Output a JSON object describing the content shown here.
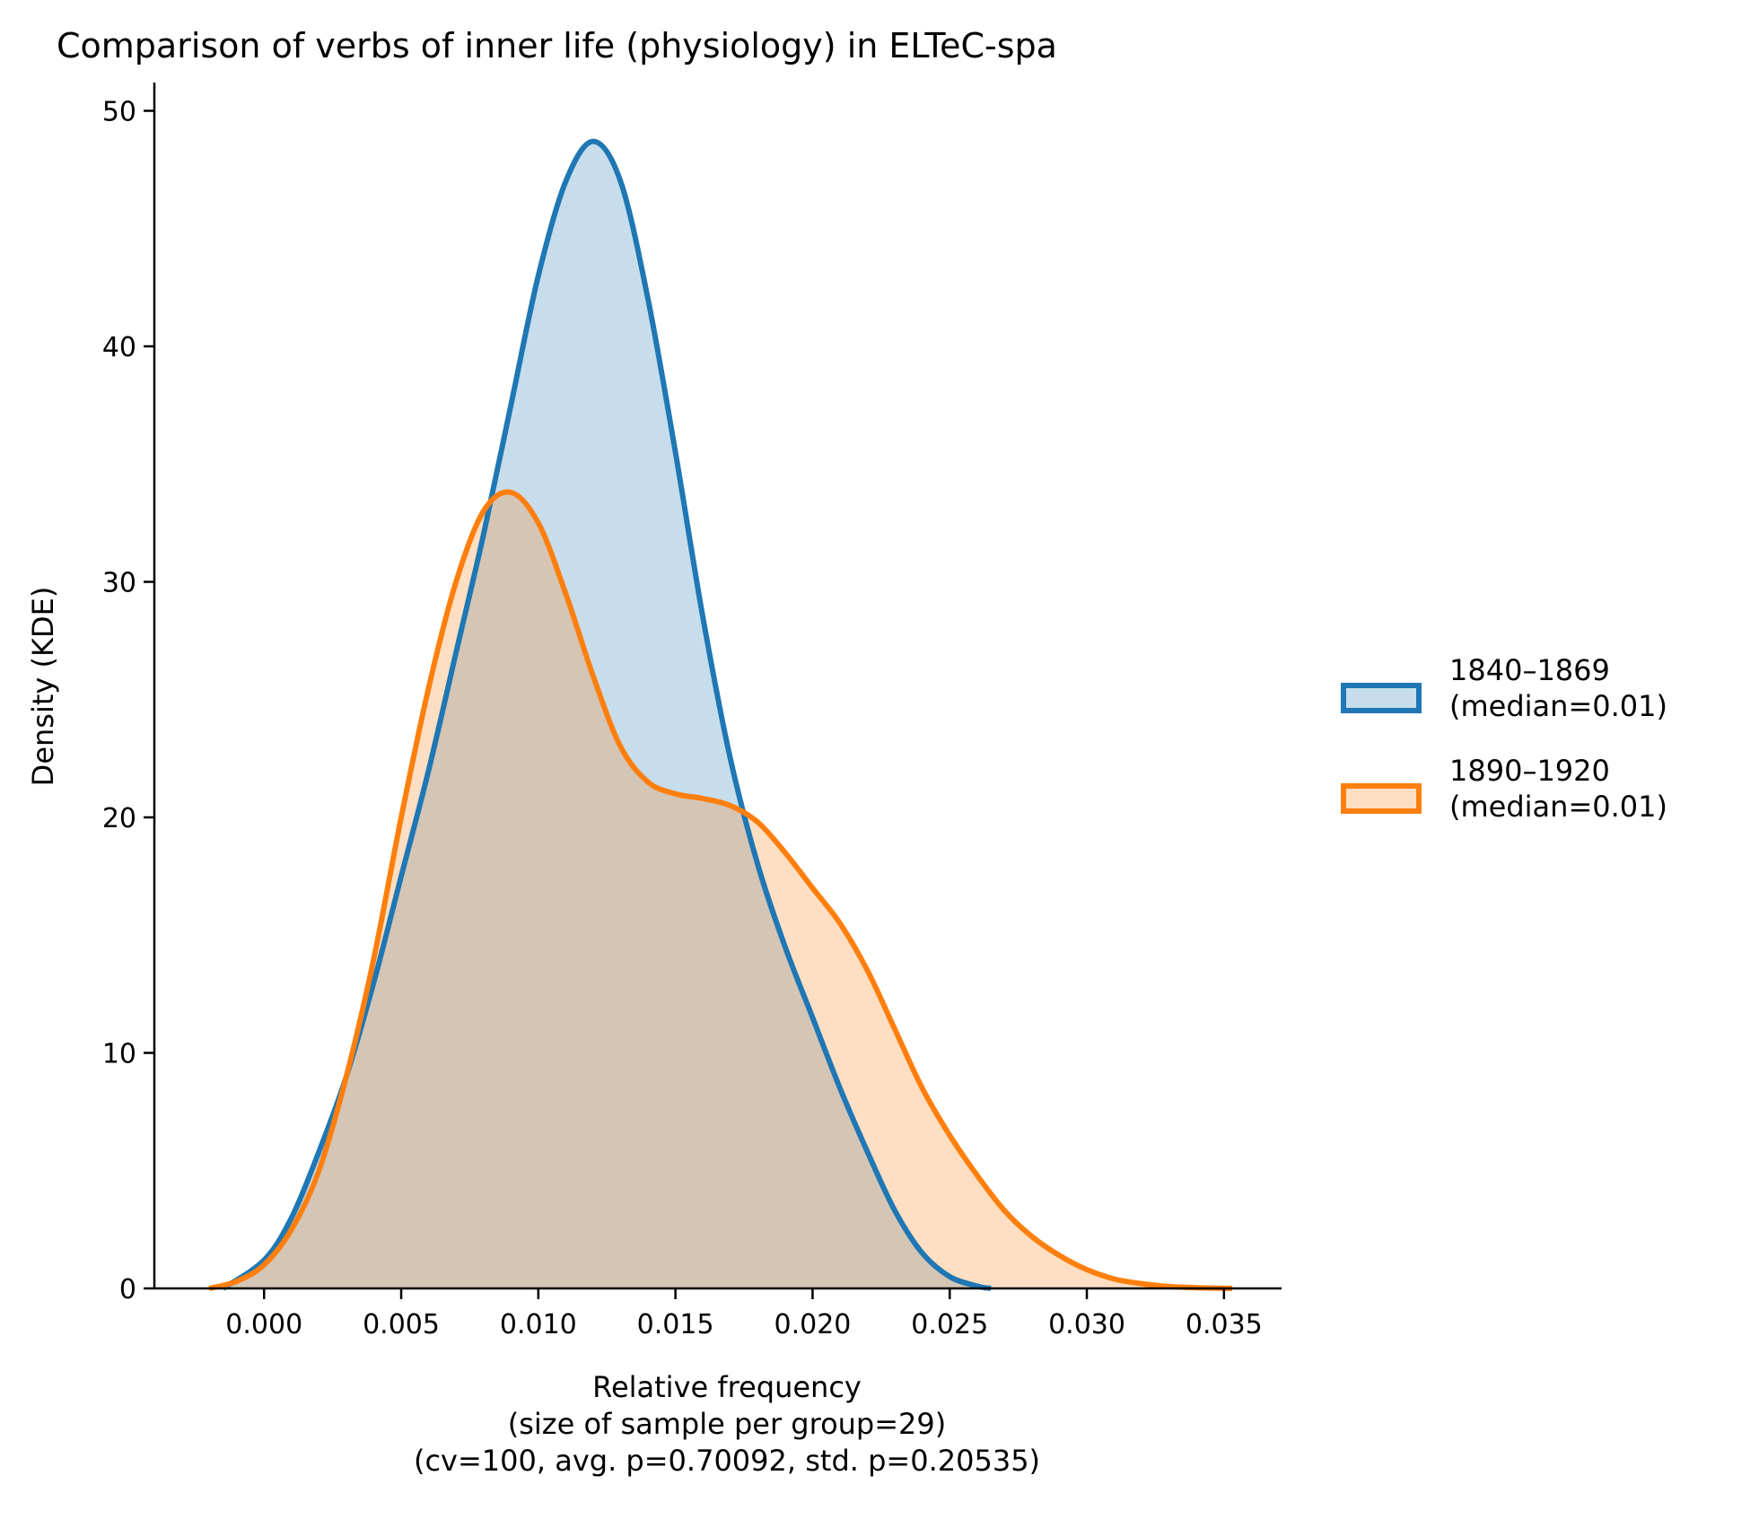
{
  "chart_data": {
    "type": "area",
    "title": "Comparison of verbs of inner life (physiology) in ELTeC-spa",
    "xlabel_lines": [
      "Relative frequency",
      "(size of sample per group=29)",
      "(cv=100, avg. p=0.70092, std. p=0.20535)"
    ],
    "ylabel": "Density (KDE)",
    "xlim": [
      -0.004,
      0.0371
    ],
    "ylim": [
      0,
      51.2
    ],
    "x_ticks": [
      0.0,
      0.005,
      0.01,
      0.015,
      0.02,
      0.025,
      0.03,
      0.035
    ],
    "x_tick_labels": [
      "0.000",
      "0.005",
      "0.010",
      "0.015",
      "0.020",
      "0.025",
      "0.030",
      "0.035"
    ],
    "y_ticks": [
      0,
      10,
      20,
      30,
      40,
      50
    ],
    "y_tick_labels": [
      "0",
      "10",
      "20",
      "30",
      "40",
      "50"
    ],
    "grid": false,
    "legend_position": "right",
    "series": [
      {
        "name": "1840–1869",
        "legend_lines": [
          "1840–1869",
          "(median=0.01)"
        ],
        "color": "#1f77b4",
        "fill": "#c6dbed",
        "points": [
          [
            -0.0015,
            0.0
          ],
          [
            0.0,
            1.2
          ],
          [
            0.001,
            3.0
          ],
          [
            0.002,
            5.8
          ],
          [
            0.003,
            9.0
          ],
          [
            0.004,
            13.0
          ],
          [
            0.005,
            17.5
          ],
          [
            0.006,
            22.0
          ],
          [
            0.007,
            27.0
          ],
          [
            0.008,
            32.0
          ],
          [
            0.009,
            37.5
          ],
          [
            0.01,
            43.0
          ],
          [
            0.011,
            47.0
          ],
          [
            0.012,
            48.7
          ],
          [
            0.013,
            47.0
          ],
          [
            0.014,
            42.0
          ],
          [
            0.015,
            35.5
          ],
          [
            0.016,
            28.5
          ],
          [
            0.017,
            22.5
          ],
          [
            0.018,
            18.0
          ],
          [
            0.019,
            14.5
          ],
          [
            0.02,
            11.5
          ],
          [
            0.021,
            8.5
          ],
          [
            0.022,
            5.8
          ],
          [
            0.023,
            3.3
          ],
          [
            0.024,
            1.5
          ],
          [
            0.025,
            0.5
          ],
          [
            0.026,
            0.1
          ],
          [
            0.0265,
            0.0
          ]
        ]
      },
      {
        "name": "1890–1920",
        "legend_lines": [
          "1890–1920",
          "(median=0.01)"
        ],
        "color": "#ff7f0e",
        "fill": "#fdd9b9",
        "points": [
          [
            -0.002,
            0.0
          ],
          [
            -0.001,
            0.3
          ],
          [
            0.0,
            1.0
          ],
          [
            0.001,
            2.5
          ],
          [
            0.002,
            5.0
          ],
          [
            0.003,
            9.0
          ],
          [
            0.004,
            14.0
          ],
          [
            0.005,
            20.0
          ],
          [
            0.006,
            25.5
          ],
          [
            0.007,
            30.0
          ],
          [
            0.008,
            33.0
          ],
          [
            0.009,
            33.8
          ],
          [
            0.01,
            32.5
          ],
          [
            0.011,
            29.5
          ],
          [
            0.012,
            26.0
          ],
          [
            0.013,
            23.0
          ],
          [
            0.014,
            21.5
          ],
          [
            0.015,
            21.0
          ],
          [
            0.016,
            20.8
          ],
          [
            0.017,
            20.5
          ],
          [
            0.018,
            19.8
          ],
          [
            0.019,
            18.5
          ],
          [
            0.02,
            17.0
          ],
          [
            0.021,
            15.5
          ],
          [
            0.022,
            13.5
          ],
          [
            0.023,
            11.0
          ],
          [
            0.024,
            8.5
          ],
          [
            0.025,
            6.5
          ],
          [
            0.026,
            4.8
          ],
          [
            0.027,
            3.3
          ],
          [
            0.028,
            2.2
          ],
          [
            0.029,
            1.4
          ],
          [
            0.03,
            0.8
          ],
          [
            0.031,
            0.4
          ],
          [
            0.032,
            0.2
          ],
          [
            0.033,
            0.08
          ],
          [
            0.034,
            0.03
          ],
          [
            0.0353,
            0.0
          ]
        ]
      }
    ]
  }
}
